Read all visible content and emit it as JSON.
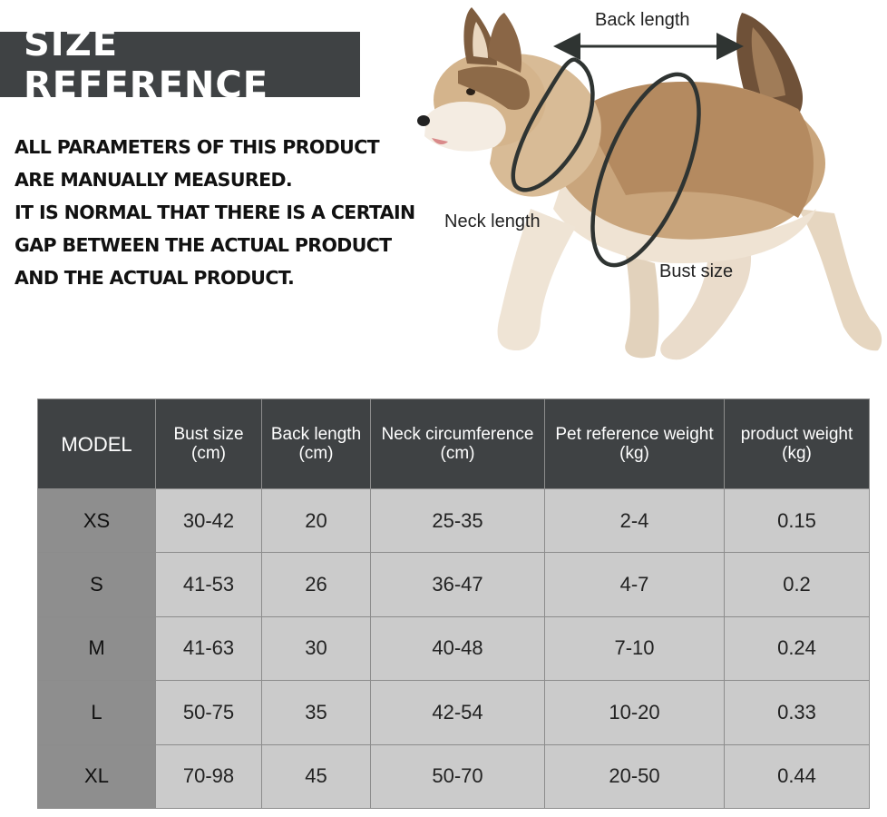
{
  "banner": {
    "title": "SIZE REFERENCE"
  },
  "notice": {
    "lines": [
      "ALL PARAMETERS OF THIS PRODUCT",
      "ARE MANUALLY MEASURED.",
      "IT IS NORMAL THAT THERE IS A CERTAIN",
      "GAP BETWEEN THE ACTUAL PRODUCT",
      "AND THE ACTUAL PRODUCT."
    ]
  },
  "diagram": {
    "back_length_label": "Back length",
    "neck_length_label": "Neck length",
    "bust_size_label": "Bust size",
    "colors": {
      "ring": "#2f3432",
      "fur": "#c9a57c",
      "fur_light": "#f1e6d6",
      "fur_dark": "#7a5b3f"
    }
  },
  "table": {
    "headers": [
      {
        "line1": "MODEL",
        "line2": ""
      },
      {
        "line1": "Bust size",
        "line2": "(cm)"
      },
      {
        "line1": "Back length",
        "line2": "(cm)"
      },
      {
        "line1": "Neck circumference",
        "line2": "(cm)"
      },
      {
        "line1": "Pet reference weight",
        "line2": "(kg)"
      },
      {
        "line1": "product weight",
        "line2": "(kg)"
      }
    ],
    "rows": [
      [
        "XS",
        "30-42",
        "20",
        "25-35",
        "2-4",
        "0.15"
      ],
      [
        "S",
        "41-53",
        "26",
        "36-47",
        "4-7",
        "0.2"
      ],
      [
        "M",
        "41-63",
        "30",
        "40-48",
        "7-10",
        "0.24"
      ],
      [
        "L",
        "50-75",
        "35",
        "42-54",
        "10-20",
        "0.33"
      ],
      [
        "XL",
        "70-98",
        "45",
        "50-70",
        "20-50",
        "0.44"
      ]
    ],
    "colors": {
      "header_bg": "#3f4244",
      "model_bg": "#8e8e8e",
      "cell_bg": "#cbcbcb",
      "border": "#8c8c8c"
    }
  }
}
